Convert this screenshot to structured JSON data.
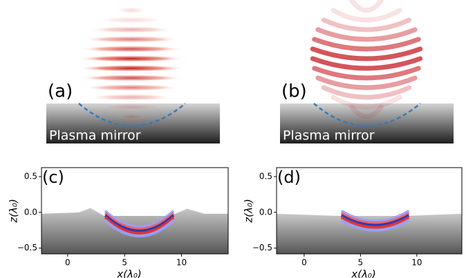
{
  "panels": [
    {
      "label": "(a)",
      "caption": "Plasma mirror",
      "wave": "flat"
    },
    {
      "label": "(b)",
      "caption": "Plasma mirror",
      "wave": "curved"
    }
  ],
  "plots": [
    {
      "label": "(c)",
      "xlabel": "x(λ₀)",
      "ylabel": "z(λ₀)",
      "xlim": [
        -2.3,
        14.1
      ],
      "ylim": [
        -0.58,
        0.625
      ],
      "xticks": [
        0,
        5,
        10
      ],
      "yticks": [
        0.5,
        {
          "value": 0.0,
          "label": "0.0"
        },
        {
          "value": -0.5,
          "label": "−0.5"
        }
      ]
    },
    {
      "label": "(d)",
      "xlabel": "x(λ₀)",
      "ylabel": "z(λ₀)",
      "xlim": [
        -2.45,
        14
      ],
      "ylim": [
        -0.58,
        0.625
      ],
      "xticks": [
        0,
        5,
        10
      ],
      "yticks": [
        0.5,
        {
          "value": 0.0,
          "label": "0.0"
        },
        {
          "value": -0.5,
          "label": "−0.5"
        }
      ]
    }
  ]
}
